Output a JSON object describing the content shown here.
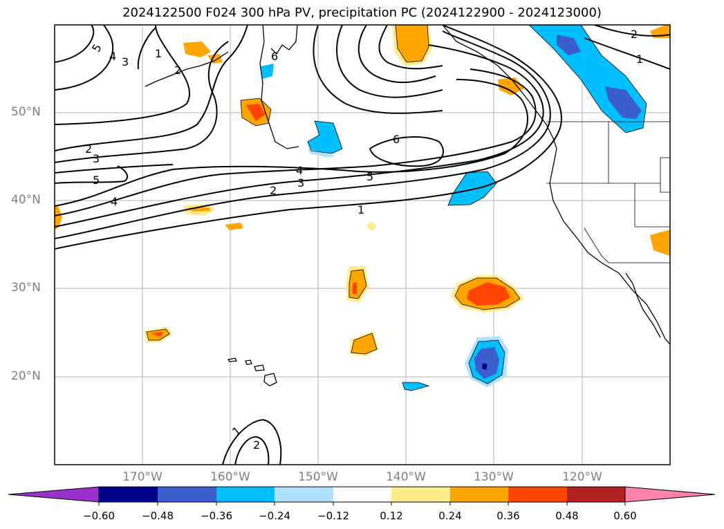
{
  "title": "2024122500 F024 300 hPa PV, precipitation PC (2024122900 - 2024123000)",
  "map": {
    "lat_labels": [
      "50°N",
      "40°N",
      "30°N",
      "20°N"
    ],
    "lon_labels": [
      "170°W",
      "160°W",
      "150°W",
      "140°W",
      "130°W",
      "120°W"
    ],
    "contour_labels": [
      "5",
      "4",
      "3",
      "2",
      "1",
      "6",
      "2",
      "3",
      "5",
      "4",
      "6",
      "4",
      "3",
      "2",
      "5",
      "1",
      "2",
      "1",
      "1",
      "2"
    ],
    "pv_contour_levels": [
      1,
      2,
      3,
      4,
      5,
      6
    ],
    "gridlines": true
  },
  "colorbar": {
    "ticks": [
      "−0.60",
      "−0.48",
      "−0.36",
      "−0.24",
      "−0.12",
      "0.12",
      "0.24",
      "0.36",
      "0.48",
      "0.60"
    ],
    "colors": [
      "#9932CC",
      "#00008B",
      "#3A5FCD",
      "#00BFFF",
      "#B0E2FF",
      "#FFFFFF",
      "#FFEC8B",
      "#FFA500",
      "#FF4500",
      "#B22222",
      "#FF82AB"
    ]
  }
}
